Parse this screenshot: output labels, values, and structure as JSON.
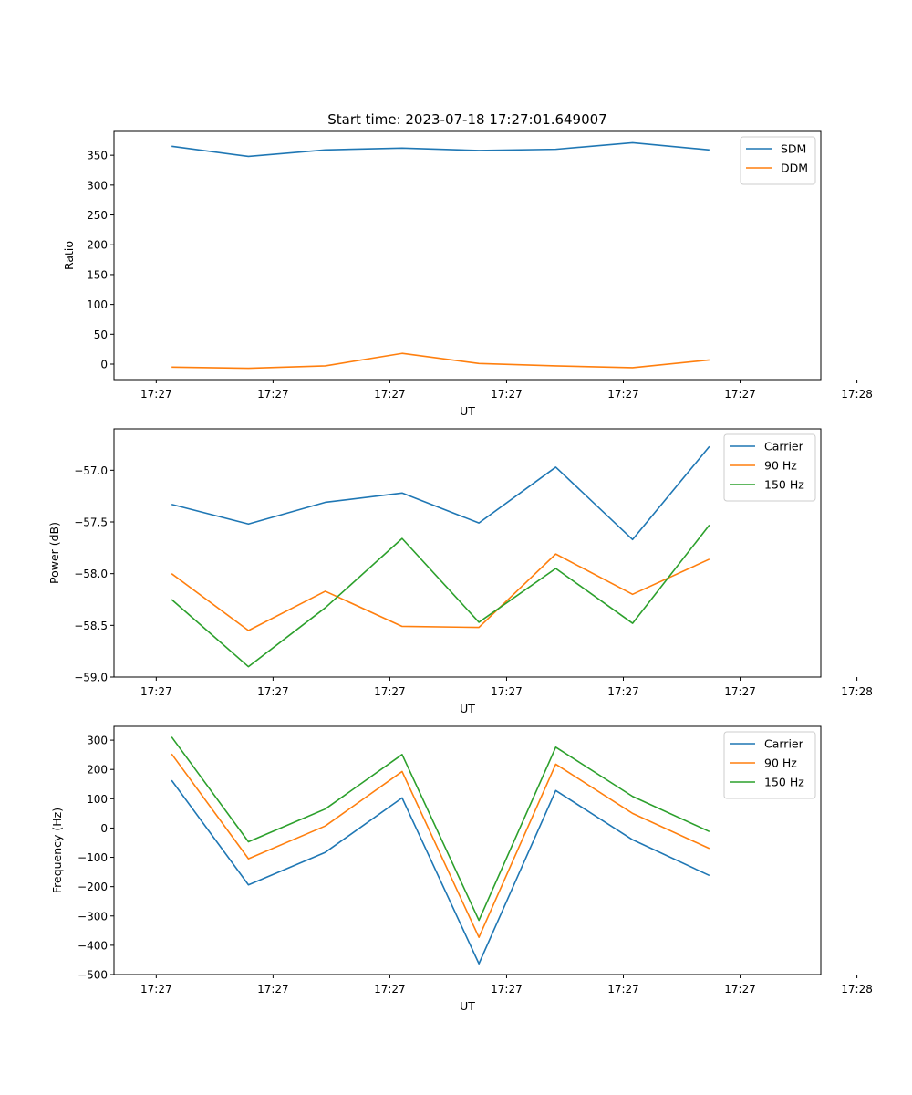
{
  "chart_data": [
    {
      "type": "line",
      "title": "Start time: 2023-07-18 17:27:01.649007",
      "xlabel": "UT",
      "ylabel": "Ratio",
      "xtick_labels": [
        "17:27",
        "17:27",
        "17:27",
        "17:27",
        "17:27",
        "17:27",
        "17:28"
      ],
      "yticks": [
        0,
        50,
        100,
        150,
        200,
        250,
        300,
        350
      ],
      "ylim": [
        -26,
        390
      ],
      "xlim": [
        -0.75,
        8.45
      ],
      "legend": "top-right",
      "series": [
        {
          "name": "SDM",
          "color": "#1f77b4",
          "values": [
            365,
            348,
            359,
            362,
            358,
            360,
            371,
            359
          ]
        },
        {
          "name": "DDM",
          "color": "#ff7f0e",
          "values": [
            -5,
            -7,
            -3,
            18,
            1,
            -3,
            -6,
            7
          ]
        }
      ]
    },
    {
      "type": "line",
      "title": "",
      "xlabel": "UT",
      "ylabel": "Power (dB)",
      "xtick_labels": [
        "17:27",
        "17:27",
        "17:27",
        "17:27",
        "17:27",
        "17:27",
        "17:28"
      ],
      "yticks": [
        -59.0,
        -58.5,
        -58.0,
        -57.5,
        -57.0
      ],
      "ytick_labels": [
        "−59.0",
        "−58.5",
        "−58.0",
        "−57.5",
        "−57.0"
      ],
      "ylim": [
        -59.0,
        -56.6
      ],
      "xlim": [
        -0.75,
        8.45
      ],
      "legend": "top-right",
      "series": [
        {
          "name": "Carrier",
          "color": "#1f77b4",
          "values": [
            -57.33,
            -57.52,
            -57.31,
            -57.22,
            -57.51,
            -56.97,
            -57.67,
            -56.77
          ]
        },
        {
          "name": "90 Hz",
          "color": "#ff7f0e",
          "values": [
            -58.0,
            -58.55,
            -58.17,
            -58.51,
            -58.52,
            -57.81,
            -58.2,
            -57.86
          ]
        },
        {
          "name": "150 Hz",
          "color": "#2ca02c",
          "values": [
            -58.25,
            -58.9,
            -58.33,
            -57.66,
            -58.47,
            -57.95,
            -58.48,
            -57.53
          ]
        }
      ]
    },
    {
      "type": "line",
      "title": "",
      "xlabel": "UT",
      "ylabel": "Frequency (Hz)",
      "xtick_labels": [
        "17:27",
        "17:27",
        "17:27",
        "17:27",
        "17:27",
        "17:27",
        "17:28"
      ],
      "yticks": [
        -500,
        -400,
        -300,
        -200,
        -100,
        0,
        100,
        200,
        300
      ],
      "ytick_labels": [
        "−500",
        "−400",
        "−300",
        "−200",
        "−100",
        "0",
        "100",
        "200",
        "300"
      ],
      "ylim": [
        -500,
        347
      ],
      "xlim": [
        -0.75,
        8.45
      ],
      "legend": "top-right",
      "series": [
        {
          "name": "Carrier",
          "color": "#1f77b4",
          "values": [
            163,
            -194,
            -83,
            103,
            -463,
            128,
            -40,
            -162
          ]
        },
        {
          "name": "90 Hz",
          "color": "#ff7f0e",
          "values": [
            253,
            -105,
            7,
            193,
            -373,
            218,
            50,
            -70
          ]
        },
        {
          "name": "150 Hz",
          "color": "#2ca02c",
          "values": [
            311,
            -47,
            65,
            251,
            -315,
            276,
            108,
            -12
          ]
        }
      ]
    }
  ]
}
